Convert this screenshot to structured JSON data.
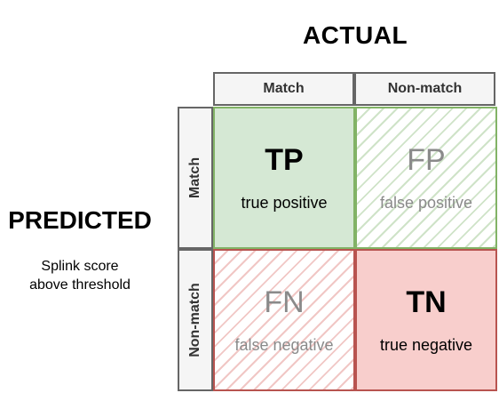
{
  "actual": {
    "title": "ACTUAL",
    "columns": [
      "Match",
      "Non-match"
    ]
  },
  "predicted": {
    "title": "PREDICTED",
    "subtitle_line1": "Splink score",
    "subtitle_line2": "above threshold",
    "rows": [
      "Match",
      "Non-match"
    ]
  },
  "cells": {
    "tp": {
      "abbr": "TP",
      "label": "true positive",
      "fill": "#d5e8d4",
      "border": "#82b366"
    },
    "fp": {
      "abbr": "FP",
      "label": "false positive",
      "fill": "hatched",
      "border": "#82b366"
    },
    "fn": {
      "abbr": "FN",
      "label": "false negative",
      "fill": "hatched",
      "border": "#b85450"
    },
    "tn": {
      "abbr": "TN",
      "label": "true negative",
      "fill": "#f8cecc",
      "border": "#b85450"
    }
  }
}
